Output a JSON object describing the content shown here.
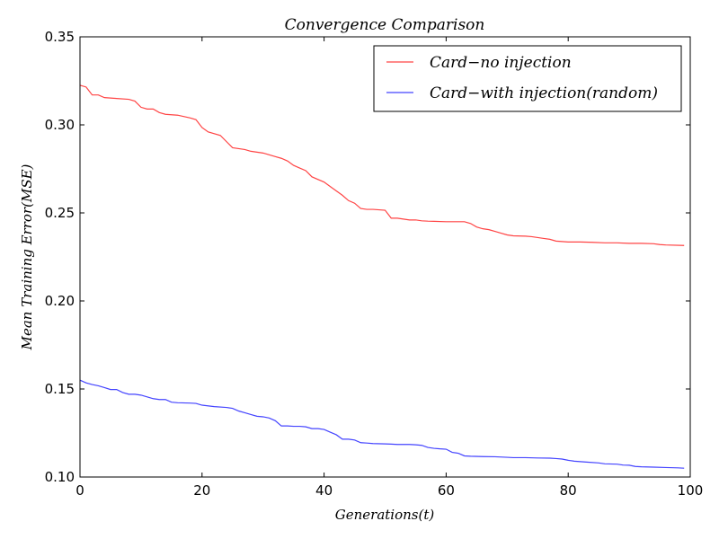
{
  "chart_data": {
    "type": "line",
    "title": "Convergence Comparison",
    "xlabel": "Generations(t)",
    "ylabel": "Mean Training Error(MSE)",
    "xlim": [
      0,
      100
    ],
    "ylim": [
      0.1,
      0.35
    ],
    "xticks": [
      0,
      20,
      40,
      60,
      80,
      100
    ],
    "xtick_labels": [
      "0",
      "20",
      "40",
      "60",
      "80",
      "100"
    ],
    "yticks": [
      0.1,
      0.15,
      0.2,
      0.25,
      0.3,
      0.35
    ],
    "ytick_labels": [
      "0.10",
      "0.15",
      "0.20",
      "0.25",
      "0.30",
      "0.35"
    ],
    "grid": false,
    "legend_position": "top-right",
    "series": [
      {
        "name": "Card−no injection",
        "color": "#ff4444",
        "x": [
          0,
          1,
          2,
          3,
          4,
          6,
          8,
          9,
          10,
          11,
          12,
          13,
          14,
          16,
          18,
          19,
          20,
          21,
          23,
          25,
          27,
          28,
          30,
          31,
          32,
          33,
          34,
          35,
          36,
          37,
          38,
          40,
          41,
          42,
          43,
          44,
          45,
          46,
          47,
          48,
          50,
          51,
          52,
          53,
          54,
          55,
          56,
          57,
          58,
          60,
          62,
          63,
          64,
          65,
          66,
          67,
          68,
          69,
          70,
          71,
          73,
          74,
          76,
          77,
          78,
          80,
          82,
          84,
          86,
          88,
          90,
          92,
          94,
          95,
          96,
          99
        ],
        "values": [
          0.3225,
          0.3215,
          0.317,
          0.317,
          0.3155,
          0.315,
          0.3145,
          0.3135,
          0.31,
          0.309,
          0.309,
          0.307,
          0.306,
          0.3055,
          0.304,
          0.303,
          0.2985,
          0.296,
          0.294,
          0.287,
          0.286,
          0.285,
          0.284,
          0.283,
          0.282,
          0.281,
          0.2795,
          0.277,
          0.2755,
          0.274,
          0.2705,
          0.2675,
          0.265,
          0.2625,
          0.26,
          0.257,
          0.2555,
          0.2525,
          0.252,
          0.252,
          0.2515,
          0.247,
          0.247,
          0.2465,
          0.246,
          0.246,
          0.2455,
          0.2453,
          0.2452,
          0.245,
          0.245,
          0.245,
          0.244,
          0.242,
          0.241,
          0.2405,
          0.2395,
          0.2385,
          0.2375,
          0.237,
          0.2368,
          0.2365,
          0.2355,
          0.235,
          0.234,
          0.2335,
          0.2335,
          0.2333,
          0.233,
          0.233,
          0.2327,
          0.2327,
          0.2325,
          0.232,
          0.2318,
          0.2315
        ]
      },
      {
        "name": "Card−with injection(random)",
        "color": "#4444ff",
        "x": [
          0,
          1,
          2,
          3,
          4,
          5,
          6,
          7,
          8,
          9,
          10,
          11,
          12,
          13,
          14,
          15,
          16,
          18,
          19,
          20,
          22,
          24,
          25,
          26,
          27,
          28,
          29,
          30,
          31,
          32,
          33,
          34,
          35,
          36,
          37,
          38,
          39,
          40,
          41,
          42,
          43,
          44,
          45,
          46,
          47,
          48,
          50,
          51,
          52,
          54,
          55,
          56,
          57,
          58,
          59,
          60,
          61,
          62,
          63,
          64,
          66,
          68,
          70,
          71,
          73,
          75,
          77,
          78,
          79,
          80,
          81,
          83,
          85,
          86,
          88,
          89,
          90,
          91,
          92,
          94,
          96,
          98,
          99
        ],
        "values": [
          0.155,
          0.1535,
          0.1525,
          0.1518,
          0.1508,
          0.1497,
          0.1497,
          0.148,
          0.147,
          0.147,
          0.1465,
          0.1455,
          0.1445,
          0.144,
          0.144,
          0.1425,
          0.1422,
          0.142,
          0.1418,
          0.1408,
          0.14,
          0.1395,
          0.139,
          0.1375,
          0.1365,
          0.1355,
          0.1345,
          0.1342,
          0.1335,
          0.132,
          0.129,
          0.129,
          0.1288,
          0.1288,
          0.1285,
          0.1275,
          0.1275,
          0.127,
          0.1255,
          0.124,
          0.1215,
          0.1215,
          0.121,
          0.1195,
          0.1193,
          0.119,
          0.1188,
          0.1187,
          0.1185,
          0.1185,
          0.1183,
          0.118,
          0.1168,
          0.1163,
          0.116,
          0.1158,
          0.114,
          0.1135,
          0.112,
          0.1118,
          0.1116,
          0.1115,
          0.1112,
          0.111,
          0.111,
          0.1108,
          0.1107,
          0.1105,
          0.1102,
          0.1095,
          0.109,
          0.1085,
          0.108,
          0.1075,
          0.1073,
          0.1068,
          0.1067,
          0.106,
          0.1058,
          0.1056,
          0.1054,
          0.1052,
          0.105
        ]
      }
    ]
  }
}
